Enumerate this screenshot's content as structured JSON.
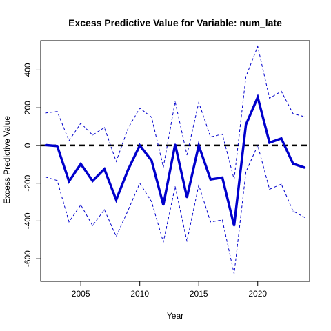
{
  "chart_data": {
    "type": "line",
    "title": "Excess Predictive Value for Variable: num_late",
    "xlabel": "Year",
    "ylabel": "Excess Predictive Value",
    "xlim": [
      2001.6,
      2024.4
    ],
    "ylim": [
      -720,
      555
    ],
    "x_ticks": [
      2005,
      2010,
      2015,
      2020
    ],
    "y_ticks": [
      -600,
      -400,
      -200,
      0,
      200,
      400
    ],
    "grid": false,
    "legend": "none",
    "x": [
      2002,
      2003,
      2004,
      2005,
      2006,
      2007,
      2008,
      2009,
      2010,
      2011,
      2012,
      2013,
      2014,
      2015,
      2016,
      2017,
      2018,
      2019,
      2020,
      2021,
      2022,
      2023,
      2024
    ],
    "series": [
      {
        "role": "estimate",
        "color": "#0000cc",
        "values": [
          2,
          -3,
          -190,
          -98,
          -188,
          -125,
          -288,
          -130,
          0,
          -80,
          -315,
          5,
          -275,
          0,
          -180,
          -170,
          -425,
          110,
          255,
          15,
          37,
          -97,
          -118
        ]
      },
      {
        "role": "upper-bound",
        "color": "#0000cc",
        "values": [
          172,
          180,
          25,
          118,
          55,
          95,
          -85,
          90,
          198,
          150,
          -115,
          232,
          -50,
          228,
          45,
          60,
          -180,
          365,
          525,
          250,
          287,
          168,
          152
        ]
      },
      {
        "role": "lower-bound",
        "color": "#0000cc",
        "values": [
          -167,
          -186,
          -405,
          -315,
          -425,
          -340,
          -482,
          -345,
          -200,
          -298,
          -512,
          -218,
          -508,
          -210,
          -405,
          -395,
          -680,
          -140,
          0,
          -232,
          -205,
          -348,
          -382
        ]
      }
    ],
    "reference_line": {
      "y": 0,
      "color": "#000000",
      "style": "dashed"
    }
  }
}
